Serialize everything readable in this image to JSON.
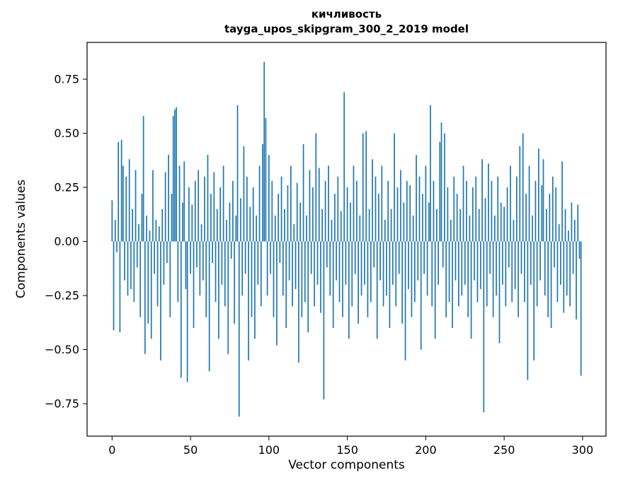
{
  "figure": {
    "title_line1": "кичливость",
    "title_line2": "tayga_upos_skipgram_300_2_2019 model",
    "xlabel": "Vector components",
    "ylabel": "Components values"
  },
  "chart_data": {
    "type": "bar",
    "title": "кичливость — tayga_upos_skipgram_300_2_2019 model",
    "xlabel": "Vector components",
    "ylabel": "Components values",
    "color": "#1f77b4",
    "legend": "none",
    "grid": false,
    "n_components": 300,
    "xlim": [
      -15.95,
      314.95
    ],
    "ylim": [
      -0.9,
      0.92
    ],
    "xticks": [
      0,
      50,
      100,
      150,
      200,
      250,
      300
    ],
    "xtick_labels": [
      "0",
      "50",
      "100",
      "150",
      "200",
      "250",
      "300"
    ],
    "yticks": [
      0.75,
      0.5,
      0.25,
      0,
      -0.25,
      -0.5,
      -0.75
    ],
    "ytick_labels": [
      "0.75",
      "0.50",
      "0.25",
      "0.00",
      "−0.25",
      "−0.50",
      "−0.75"
    ],
    "values": [
      0.19,
      -0.41,
      0.1,
      -0.05,
      0.46,
      -0.42,
      0.47,
      0.35,
      -0.18,
      0.3,
      -0.25,
      0.38,
      -0.22,
      0.15,
      -0.28,
      0.33,
      -0.12,
      0.08,
      -0.35,
      0.22,
      0.58,
      -0.52,
      0.12,
      -0.38,
      0.05,
      -0.45,
      0.33,
      -0.15,
      0.1,
      -0.3,
      0.07,
      -0.55,
      0.15,
      -0.2,
      0.32,
      -0.1,
      0.4,
      -0.35,
      0.22,
      0.58,
      0.61,
      0.62,
      -0.28,
      0.35,
      -0.63,
      0.18,
      0.37,
      -0.22,
      -0.65,
      0.25,
      -0.15,
      0.17,
      -0.4,
      0.28,
      -0.12,
      0.33,
      -0.25,
      0.08,
      -0.18,
      0.3,
      -0.35,
      0.4,
      -0.6,
      0.22,
      -0.1,
      0.32,
      -0.28,
      0.15,
      -0.45,
      0.25,
      -0.2,
      0.35,
      -0.3,
      0.1,
      -0.52,
      0.18,
      -0.08,
      0.28,
      -0.38,
      0.12,
      0.63,
      -0.81,
      0.2,
      -0.25,
      0.44,
      -0.15,
      0.3,
      -0.55,
      0.16,
      -0.35,
      0.25,
      -0.45,
      0.12,
      -0.2,
      0.35,
      -0.3,
      0.45,
      0.83,
      0.57,
      -0.25,
      0.4,
      -0.15,
      0.28,
      -0.35,
      0.12,
      -0.48,
      0.22,
      -0.1,
      0.3,
      -0.25,
      0.15,
      -0.4,
      0.26,
      -0.18,
      0.35,
      -0.3,
      0.08,
      -0.22,
      0.27,
      -0.56,
      0.18,
      -0.35,
      0.45,
      -0.28,
      0.12,
      -0.42,
      0.33,
      -0.15,
      0.25,
      -0.3,
      0.5,
      -0.2,
      0.34,
      -0.33,
      0.15,
      -0.73,
      0.28,
      -0.12,
      0.35,
      -0.25,
      0.1,
      -0.4,
      0.22,
      -0.18,
      0.3,
      -0.28,
      0.14,
      -0.35,
      0.69,
      -0.2,
      0.25,
      -0.45,
      0.18,
      -0.3,
      0.35,
      -0.15,
      0.28,
      -0.38,
      0.12,
      -0.25,
      0.5,
      -0.2,
      0.51,
      -0.35,
      0.15,
      -0.28,
      0.38,
      -0.12,
      0.3,
      -0.45,
      0.22,
      -0.18,
      0.35,
      -0.3,
      0.1,
      -0.25,
      0.28,
      -0.4,
      0.15,
      -0.2,
      0.5,
      -0.3,
      0.25,
      -0.15,
      0.33,
      -0.38,
      0.18,
      -0.55,
      0.28,
      -0.22,
      0.26,
      -0.35,
      0.12,
      -0.28,
      0.4,
      -0.18,
      0.3,
      -0.5,
      0.22,
      -0.15,
      0.35,
      -0.25,
      0.18,
      0.63,
      -0.3,
      0.28,
      -0.45,
      0.15,
      -0.2,
      0.46,
      0.55,
      -0.12,
      0.5,
      -0.35,
      0.25,
      -0.28,
      0.1,
      -0.4,
      0.3,
      -0.18,
      0.22,
      -0.3,
      0.15,
      -0.25,
      0.35,
      -0.2,
      0.28,
      -0.35,
      0.12,
      -0.45,
      0.25,
      -0.18,
      0.3,
      -0.28,
      0.15,
      -0.22,
      0.38,
      -0.79,
      0.2,
      -0.3,
      0.36,
      -0.15,
      0.28,
      -0.35,
      0.12,
      -0.25,
      0.3,
      -0.47,
      0.18,
      -0.2,
      0.16,
      -0.3,
      0.25,
      -0.12,
      0.35,
      -0.28,
      0.1,
      -0.22,
      0.3,
      -0.35,
      0.44,
      -0.15,
      0.5,
      -0.28,
      0.22,
      -0.64,
      0.35,
      -0.2,
      0.12,
      -0.55,
      0.28,
      -0.3,
      0.43,
      -0.18,
      0.26,
      0.38,
      -0.25,
      0.15,
      -0.35,
      0.22,
      -0.4,
      0.3,
      -0.12,
      0.25,
      -0.28,
      0.08,
      -0.2,
      0.37,
      -0.33,
      0.15,
      -0.25,
      0.05,
      -0.3,
      0.18,
      -0.15,
      0.1,
      -0.36,
      0.17,
      -0.08,
      -0.62
    ]
  }
}
